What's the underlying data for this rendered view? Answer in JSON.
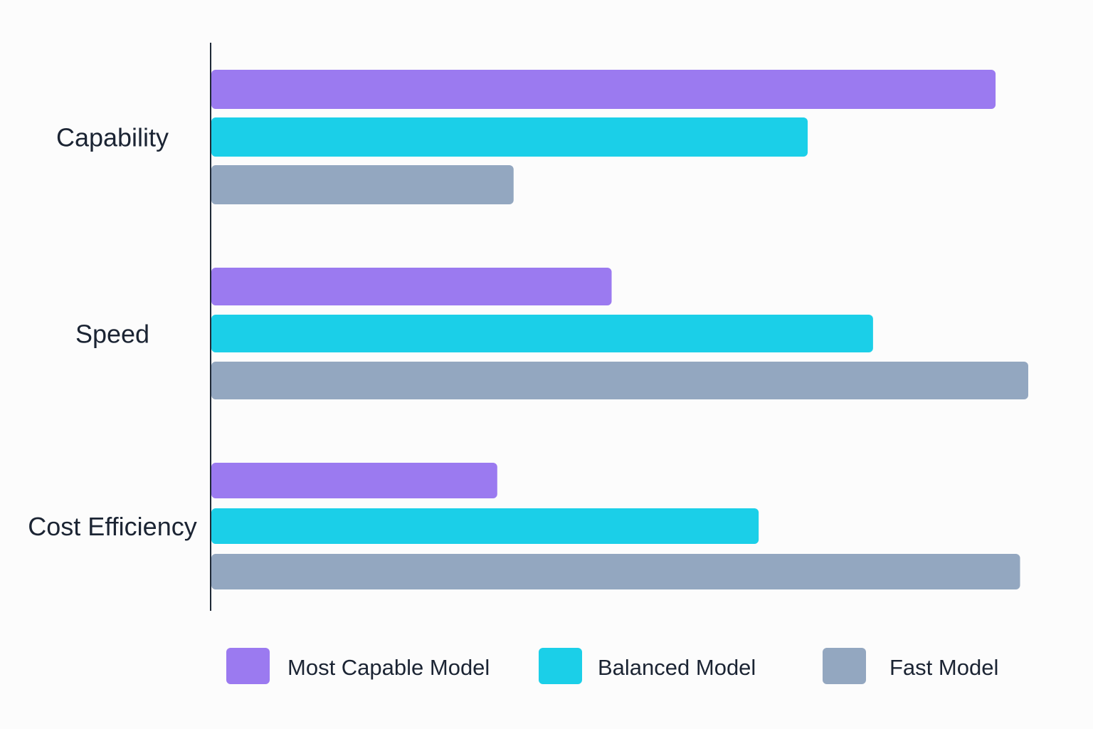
{
  "chart_data": {
    "type": "bar",
    "orientation": "horizontal",
    "categories": [
      "Capability",
      "Speed",
      "Cost Efficiency"
    ],
    "series": [
      {
        "name": "Most Capable Model",
        "color": "#9b7af0",
        "values": [
          96,
          49,
          35
        ]
      },
      {
        "name": "Balanced Model",
        "color": "#1bcfe8",
        "values": [
          73,
          81,
          67
        ]
      },
      {
        "name": "Fast Model",
        "color": "#93a7c0",
        "values": [
          37,
          100,
          99
        ]
      }
    ],
    "xlim": [
      0,
      100
    ],
    "grid": false,
    "legend_position": "bottom"
  },
  "colors": {
    "axis": "#1f2937",
    "text": "#1b2433",
    "background": "#fcfcfc"
  }
}
